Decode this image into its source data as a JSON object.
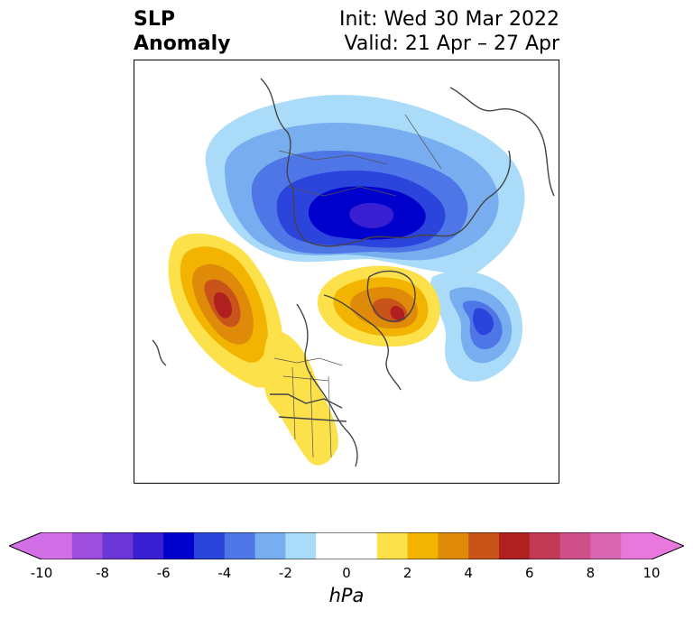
{
  "title": {
    "left_line1": "SLP",
    "left_line2": "Anomaly",
    "right_line1": "Init: Wed 30 Mar 2022",
    "right_line2": "Valid: 21 Apr – 27 Apr"
  },
  "colorbar": {
    "unit": "hPa",
    "min": -10,
    "max": 10,
    "tick_labels": [
      "-10",
      "-8",
      "-6",
      "-4",
      "-2",
      "0",
      "2",
      "4",
      "6",
      "8",
      "10"
    ],
    "tick_values": [
      -10,
      -8,
      -6,
      -4,
      -2,
      0,
      2,
      4,
      6,
      8,
      10
    ],
    "colors": [
      "#d26ee6",
      "#9c4fdc",
      "#6a36d8",
      "#3a1ed2",
      "#0000cc",
      "#2a44dc",
      "#4f76e6",
      "#78aef0",
      "#aadcfa",
      "#ffffff",
      "#ffffff",
      "#fde14a",
      "#f2b400",
      "#e08a0a",
      "#c8541a",
      "#b02020",
      "#c23a56",
      "#d0508a",
      "#d866b0",
      "#e878dc"
    ],
    "extend_low_color": "#d26ee6",
    "extend_high_color": "#e878dc"
  },
  "map": {
    "projection": "north-polar-stereographic",
    "anomaly_centers": [
      {
        "name": "negative anomaly over Arctic",
        "value_hpa": -7
      },
      {
        "name": "negative anomaly south of Iceland",
        "value_hpa": -5
      },
      {
        "name": "positive anomaly over Gulf of Alaska",
        "value_hpa": 7
      },
      {
        "name": "positive anomaly over Greenland",
        "value_hpa": 7
      }
    ]
  }
}
